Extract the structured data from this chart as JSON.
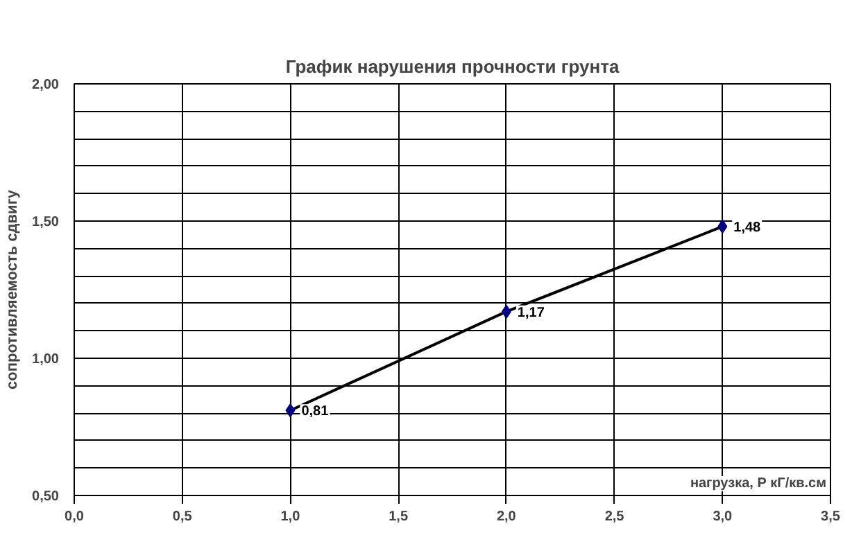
{
  "chart_data": {
    "type": "line",
    "title": "График нарушения прочности грунта",
    "xlabel": "нагрузка, Р кГ/кв.см",
    "ylabel": "сопротивляемость сдвигу",
    "x": [
      1,
      2,
      3
    ],
    "series": [
      {
        "color": "#000080",
        "values": [
          0.81,
          1.17,
          1.48
        ],
        "value_labels": [
          "0,81",
          "1,17",
          "1,48"
        ]
      }
    ],
    "xlim": [
      0,
      3.5
    ],
    "ylim": [
      0.5,
      2.0
    ],
    "xticks": [
      {
        "value": 0,
        "label": "0,0"
      },
      {
        "value": 0.5,
        "label": "0,5"
      },
      {
        "value": 1,
        "label": "1,0"
      },
      {
        "value": 1.5,
        "label": "1,5"
      },
      {
        "value": 2,
        "label": "2,0"
      },
      {
        "value": 2.5,
        "label": "2,5"
      },
      {
        "value": 3,
        "label": "3,0"
      },
      {
        "value": 3.5,
        "label": "3,5"
      }
    ],
    "yticks": [
      {
        "value": 0.5,
        "label": "0,50"
      },
      {
        "value": 0.6,
        "label": null
      },
      {
        "value": 0.7,
        "label": null
      },
      {
        "value": 0.8,
        "label": null
      },
      {
        "value": 0.9,
        "label": null
      },
      {
        "value": 1.0,
        "label": "1,00"
      },
      {
        "value": 1.1,
        "label": null
      },
      {
        "value": 1.2,
        "label": null
      },
      {
        "value": 1.3,
        "label": null
      },
      {
        "value": 1.4,
        "label": null
      },
      {
        "value": 1.5,
        "label": "1,50"
      },
      {
        "value": 1.6,
        "label": null
      },
      {
        "value": 1.7,
        "label": null
      },
      {
        "value": 1.8,
        "label": null
      },
      {
        "value": 1.9,
        "label": null
      },
      {
        "value": 2.0,
        "label": "2,00"
      }
    ],
    "grid": true,
    "marker": "diamond",
    "line_style": "solid"
  }
}
